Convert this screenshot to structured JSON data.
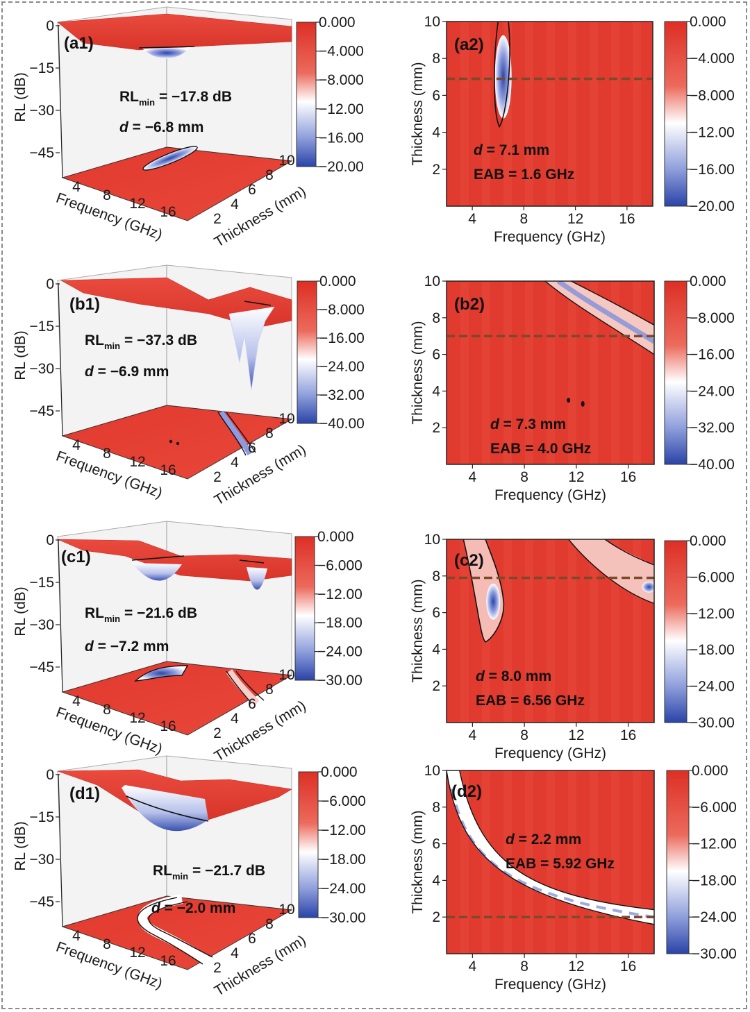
{
  "figure": {
    "panels_3d": [
      {
        "label": "(a1)",
        "rl_text": "RL",
        "rl_sub": "min",
        "rl_value": "= −17.8 dB",
        "d_text": "d",
        "d_value": "= −6.8 mm",
        "zlabel": "RL (dB)",
        "zticks": [
          "0",
          "−15",
          "−30",
          "−45"
        ],
        "freq_label": "Frequency (GHz)",
        "freq_ticks": [
          "4",
          "8",
          "12",
          "16"
        ],
        "thick_label": "Thickness (mm)",
        "thick_ticks": [
          "2",
          "4",
          "6",
          "8",
          "10"
        ],
        "colorbar": [
          "0.000",
          "−4.000",
          "−8.000",
          "−12.00",
          "−16.00",
          "−20.00"
        ]
      },
      {
        "label": "(b1)",
        "rl_text": "RL",
        "rl_sub": "min",
        "rl_value": "= −37.3 dB",
        "d_text": "d",
        "d_value": "= −6.9 mm",
        "zlabel": "RL (dB)",
        "zticks": [
          "0",
          "−15",
          "−30",
          "−45"
        ],
        "freq_label": "Frequency (GHz)",
        "freq_ticks": [
          "4",
          "8",
          "12",
          "16"
        ],
        "thick_label": "Thickness (mm)",
        "thick_ticks": [
          "2",
          "4",
          "6",
          "8",
          "10"
        ],
        "colorbar": [
          "0.000",
          "−8.000",
          "−16.00",
          "−24.00",
          "−32.00",
          "−40.00"
        ]
      },
      {
        "label": "(c1)",
        "rl_text": "RL",
        "rl_sub": "min",
        "rl_value": "= −21.6 dB",
        "d_text": "d",
        "d_value": "= −7.2 mm",
        "zlabel": "RL (dB)",
        "zticks": [
          "0",
          "−15",
          "−30",
          "−45"
        ],
        "freq_label": "Frequency (GHz)",
        "freq_ticks": [
          "4",
          "8",
          "12",
          "16"
        ],
        "thick_label": "Thickness (mm)",
        "thick_ticks": [
          "2",
          "4",
          "6",
          "8",
          "10"
        ],
        "colorbar": [
          "0.000",
          "−6.000",
          "−12.00",
          "−18.00",
          "−24.00",
          "−30.00"
        ]
      },
      {
        "label": "(d1)",
        "rl_text": "RL",
        "rl_sub": "min",
        "rl_value": "= −21.7 dB",
        "d_text": "d",
        "d_value": "= −2.0 mm",
        "zlabel": "RL (dB)",
        "zticks": [
          "0",
          "−15",
          "−30",
          "−45"
        ],
        "freq_label": "Frequency (GHz)",
        "freq_ticks": [
          "4",
          "8",
          "12",
          "16"
        ],
        "thick_label": "Thickness (mm)",
        "thick_ticks": [
          "2",
          "4",
          "6",
          "8",
          "10"
        ],
        "colorbar": [
          "0.000",
          "−6.000",
          "−12.00",
          "−18.00",
          "−24.00",
          "−30.00"
        ]
      }
    ],
    "panels_2d": [
      {
        "label": "(a2)",
        "d_text": "d",
        "d_value": "= 7.1 mm",
        "eab": "EAB = 1.6 GHz",
        "xlabel": "Frequency (GHz)",
        "ylabel": "Thickness (mm)",
        "xticks": [
          "4",
          "8",
          "12",
          "16"
        ],
        "yticks": [
          "2",
          "4",
          "6",
          "8",
          "10"
        ],
        "colorbar": [
          "0.000",
          "−4.000",
          "−8.000",
          "−12.00",
          "−16.00",
          "−20.00"
        ]
      },
      {
        "label": "(b2)",
        "d_text": "d",
        "d_value": "= 7.3 mm",
        "eab": "EAB = 4.0 GHz",
        "xlabel": "Frequency (GHz)",
        "ylabel": "Thickness (mm)",
        "xticks": [
          "4",
          "8",
          "12",
          "16"
        ],
        "yticks": [
          "2",
          "4",
          "6",
          "8",
          "10"
        ],
        "colorbar": [
          "0.000",
          "−8.000",
          "−16.00",
          "−24.00",
          "−32.00",
          "−40.00"
        ]
      },
      {
        "label": "(c2)",
        "d_text": "d",
        "d_value": "= 8.0 mm",
        "eab": "EAB = 6.56 GHz",
        "xlabel": "Frequency (GHz)",
        "ylabel": "Thickness (mm)",
        "xticks": [
          "4",
          "8",
          "12",
          "16"
        ],
        "yticks": [
          "2",
          "4",
          "6",
          "8",
          "10"
        ],
        "colorbar": [
          "0.000",
          "−6.000",
          "−12.00",
          "−18.00",
          "−24.00",
          "−30.00"
        ]
      },
      {
        "label": "(d2)",
        "d_text": "d",
        "d_value": "= 2.2 mm",
        "eab": "EAB = 5.92 GHz",
        "xlabel": "Frequency (GHz)",
        "ylabel": "Thickness (mm)",
        "xticks": [
          "4",
          "8",
          "12",
          "16"
        ],
        "yticks": [
          "2",
          "4",
          "6",
          "8",
          "10"
        ],
        "colorbar": [
          "0.000",
          "−6.000",
          "−12.00",
          "−18.00",
          "−24.00",
          "−30.00"
        ]
      }
    ],
    "colors": {
      "surface": "#e03a2f",
      "surface_light": "#ee5a48",
      "low": "#2c46a6",
      "mid": "#ffffff",
      "dash": "#7a4a2a",
      "contour": "#111111"
    }
  },
  "chart_data": [
    {
      "type": "heatmap",
      "panel": "(a2)",
      "title": "",
      "xlabel": "Frequency (GHz)",
      "ylabel": "Thickness (mm)",
      "xlim": [
        2,
        18
      ],
      "ylim": [
        0,
        10
      ],
      "zlim": [
        -20,
        0
      ],
      "rl_min_db": -17.8,
      "optimal_thickness_mm": 7.1,
      "eab_ghz": 1.6,
      "dashed_line_thickness_mm": 6.9,
      "colorbar_ticks": [
        0,
        -4,
        -8,
        -12,
        -16,
        -20
      ]
    },
    {
      "type": "heatmap",
      "panel": "(b2)",
      "title": "",
      "xlabel": "Frequency (GHz)",
      "ylabel": "Thickness (mm)",
      "xlim": [
        2,
        18
      ],
      "ylim": [
        0,
        10
      ],
      "zlim": [
        -40,
        0
      ],
      "rl_min_db": -37.3,
      "optimal_thickness_mm": 7.3,
      "eab_ghz": 4.0,
      "dashed_line_thickness_mm": 7.0,
      "colorbar_ticks": [
        0,
        -8,
        -16,
        -24,
        -32,
        -40
      ]
    },
    {
      "type": "heatmap",
      "panel": "(c2)",
      "title": "",
      "xlabel": "Frequency (GHz)",
      "ylabel": "Thickness (mm)",
      "xlim": [
        2,
        18
      ],
      "ylim": [
        0,
        10
      ],
      "zlim": [
        -30,
        0
      ],
      "rl_min_db": -21.6,
      "optimal_thickness_mm": 8.0,
      "eab_ghz": 6.56,
      "dashed_line_thickness_mm": 7.9,
      "colorbar_ticks": [
        0,
        -6,
        -12,
        -18,
        -24,
        -30
      ]
    },
    {
      "type": "heatmap",
      "panel": "(d2)",
      "title": "",
      "xlabel": "Frequency (GHz)",
      "ylabel": "Thickness (mm)",
      "xlim": [
        2,
        18
      ],
      "ylim": [
        0,
        10
      ],
      "zlim": [
        -30,
        0
      ],
      "rl_min_db": -21.7,
      "optimal_thickness_mm": 2.2,
      "eab_ghz": 5.92,
      "dashed_line_thickness_mm": 2.0,
      "colorbar_ticks": [
        0,
        -6,
        -12,
        -18,
        -24,
        -30
      ]
    }
  ]
}
